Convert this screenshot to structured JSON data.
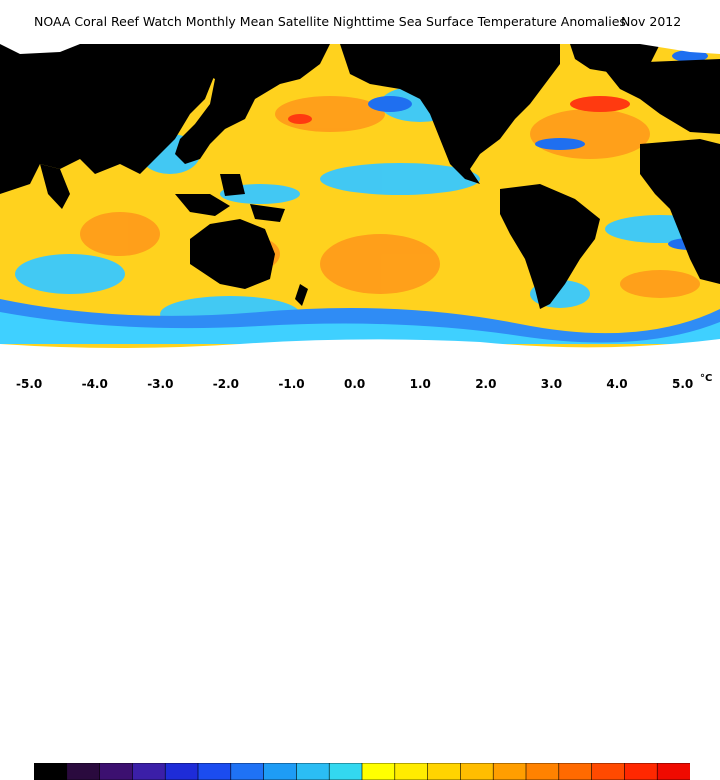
{
  "title": "NOAA Coral Reef Watch Monthly Mean Satellite Nighttime Sea Surface Temperature Anomalies",
  "date": "Nov 2012",
  "legend": {
    "ticks": [
      "-5.0",
      "-4.0",
      "-3.0",
      "-2.0",
      "-1.0",
      "0.0",
      "1.0",
      "2.0",
      "3.0",
      "4.0",
      "5.0"
    ],
    "unit": "°C",
    "colors": [
      "#000000",
      "#2a0a3e",
      "#3c1070",
      "#3b1fa8",
      "#1e2cd8",
      "#1b4cf0",
      "#1f72f5",
      "#1e9cf5",
      "#2bbdf4",
      "#33d8f0",
      "#ffff00",
      "#ffec00",
      "#ffd400",
      "#ffbd00",
      "#ff9e00",
      "#ff8200",
      "#ff6a00",
      "#ff4a00",
      "#ff2800",
      "#f00a00"
    ]
  },
  "palette": {
    "land": "#000000",
    "ice": "#ffffff",
    "ocean_neutral": "#ffd21e",
    "ocean_warm": "#ff8c1a",
    "ocean_hot": "#ff3a10",
    "ocean_cool": "#33c8ff",
    "ocean_cold": "#1f6ff0"
  }
}
